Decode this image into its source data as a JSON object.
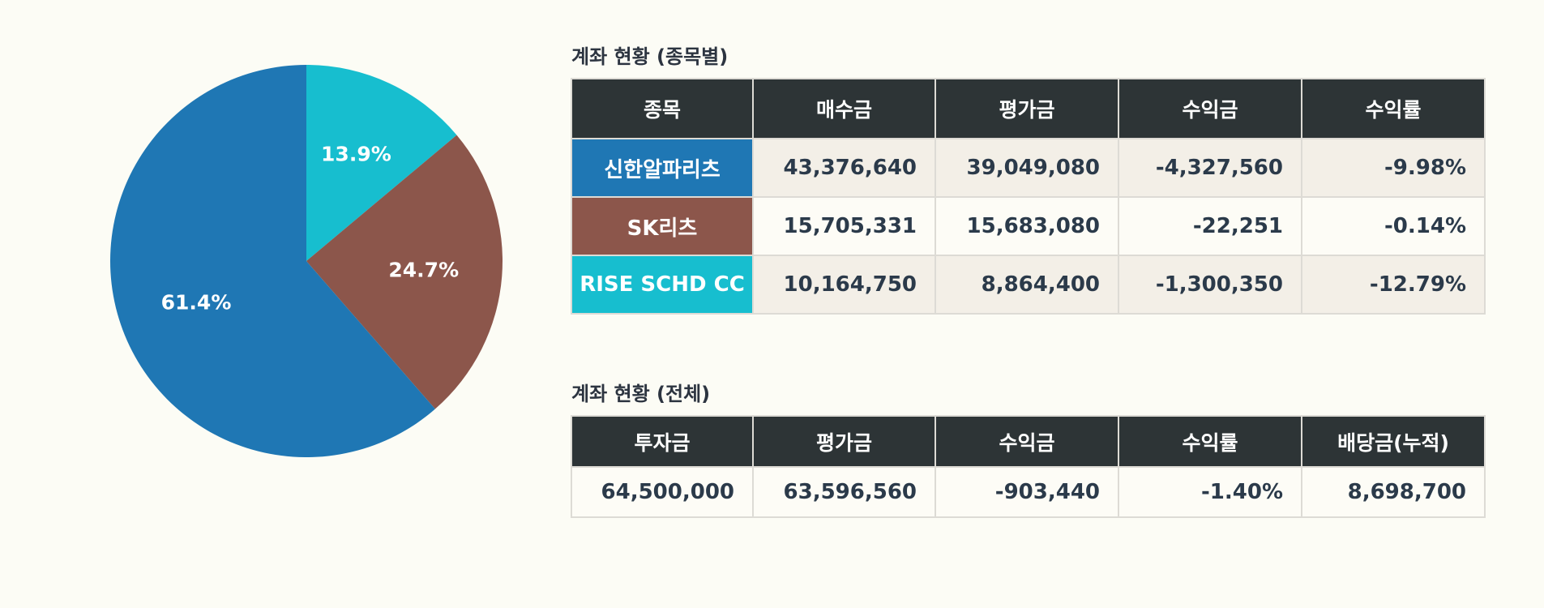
{
  "colors": {
    "background": "#fcfcf5",
    "header_bg": "#2d3436",
    "header_text": "#ffffff",
    "cell_text": "#2b3a4a",
    "row_alt_bg": "#f3efe7",
    "row_bg": "#fdfcf6",
    "border": "#dddbd5"
  },
  "chart_data": {
    "type": "pie",
    "title": "",
    "categories": [
      "RISE SCHD CC",
      "SK리츠",
      "신한알파리츠"
    ],
    "values": [
      13.9,
      24.7,
      61.4
    ],
    "labels": [
      "13.9%",
      "24.7%",
      "61.4%"
    ],
    "colors": [
      "#17becf",
      "#8c564b",
      "#1f77b4"
    ],
    "start_angle": 90,
    "direction": "clockwise",
    "legend": "none"
  },
  "by_stock": {
    "title": "계좌 현황 (종목별)",
    "headers": [
      "종목",
      "매수금",
      "평가금",
      "수익금",
      "수익률"
    ],
    "rows": [
      {
        "name": "신한알파리츠",
        "color": "#1f77b4",
        "buy": "43,376,640",
        "eval": "39,049,080",
        "profit": "-4,327,560",
        "rate": "-9.98%"
      },
      {
        "name": "SK리츠",
        "color": "#8c564b",
        "buy": "15,705,331",
        "eval": "15,683,080",
        "profit": "-22,251",
        "rate": "-0.14%"
      },
      {
        "name": "RISE SCHD CC",
        "color": "#17becf",
        "buy": "10,164,750",
        "eval": "8,864,400",
        "profit": "-1,300,350",
        "rate": "-12.79%"
      }
    ]
  },
  "total": {
    "title": "계좌 현황 (전체)",
    "headers": [
      "투자금",
      "평가금",
      "수익금",
      "수익률",
      "배당금(누적)"
    ],
    "values": [
      "64,500,000",
      "63,596,560",
      "-903,440",
      "-1.40%",
      "8,698,700"
    ]
  }
}
